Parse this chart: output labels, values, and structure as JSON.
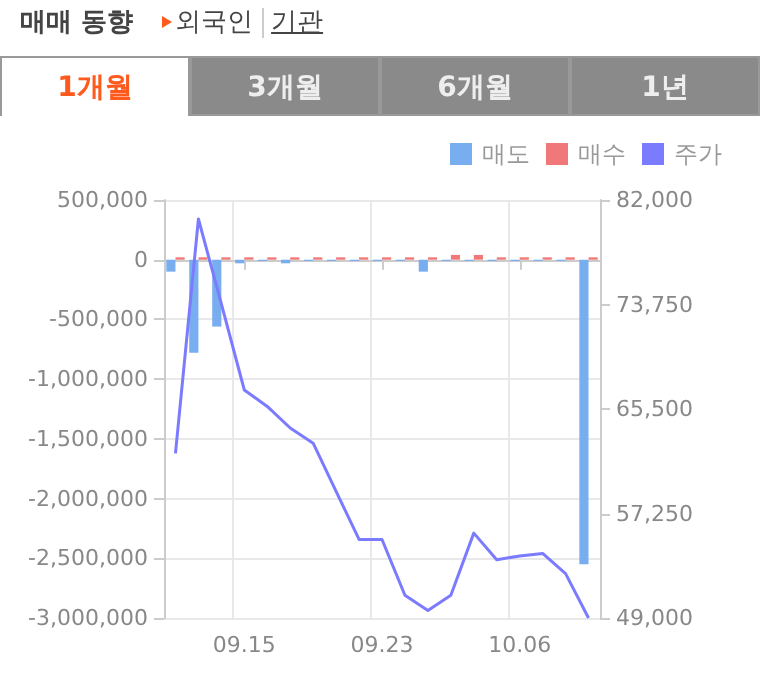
{
  "chart_data": {
    "type": "bar",
    "title": "매매 동향",
    "annotations": [
      "외국인",
      "기관",
      "1개월",
      "3개월",
      "6개월",
      "1년"
    ],
    "categories": [
      null,
      null,
      null,
      "09.15",
      null,
      null,
      null,
      null,
      null,
      "09.23",
      null,
      null,
      null,
      null,
      null,
      "10.06",
      null,
      null,
      null
    ],
    "series": [
      {
        "name": "매도",
        "color": "#78aef0",
        "values": [
          -100000,
          -780000,
          -560000,
          -30000,
          -10000,
          -30000,
          -10000,
          -10000,
          -10000,
          -10000,
          -10000,
          -100000,
          -10000,
          -10000,
          -10000,
          -10000,
          -10000,
          -10000,
          -2550000
        ]
      },
      {
        "name": "매수",
        "color": "#f07878",
        "values": [
          20000,
          20000,
          20000,
          20000,
          20000,
          20000,
          20000,
          20000,
          20000,
          20000,
          20000,
          20000,
          40000,
          40000,
          20000,
          20000,
          20000,
          20000,
          20000
        ]
      },
      {
        "name": "주가",
        "type": "line",
        "axis": "y2",
        "color": "#7b7bff",
        "values": [
          62000,
          80500,
          73800,
          67000,
          65700,
          64000,
          62800,
          59000,
          55200,
          55200,
          50800,
          49600,
          50800,
          55700,
          53600,
          53900,
          54100,
          52500,
          49000
        ]
      }
    ],
    "ylim": [
      -3000000,
      500000
    ],
    "yticks": [
      {
        "value": -3000000,
        "label": "-3,000,000"
      },
      {
        "value": -2500000,
        "label": "-2,500,000"
      },
      {
        "value": -2000000,
        "label": "-2,000,000"
      },
      {
        "value": -1500000,
        "label": "-1,500,000"
      },
      {
        "value": -1000000,
        "label": "-1,000,000"
      },
      {
        "value": -500000,
        "label": "-500,000"
      },
      0,
      {
        "value": 500000,
        "label": "500,000"
      }
    ],
    "y2lim": [
      49000,
      82000
    ],
    "y2ticks": [
      {
        "value": 49000,
        "label": "49,000"
      },
      {
        "value": 57250,
        "label": "57,250"
      },
      {
        "value": 65500,
        "label": "65,500"
      },
      {
        "value": 73750,
        "label": "73,750"
      },
      {
        "value": 82000,
        "label": "82,000"
      }
    ],
    "grid": true,
    "legend": "top right",
    "marker": "none"
  }
}
